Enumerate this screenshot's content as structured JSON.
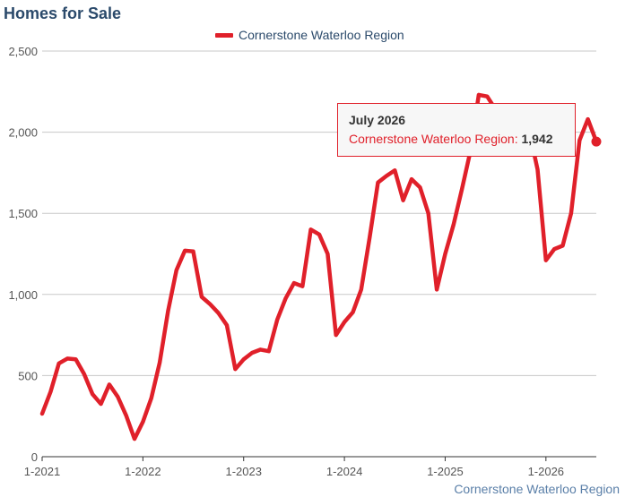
{
  "header": {
    "title": "Homes for Sale"
  },
  "legend": {
    "series_label": "Cornerstone Waterloo Region"
  },
  "tooltip": {
    "date": "July 2026",
    "series_label": "Cornerstone Waterloo Region",
    "separator": ":",
    "value": "1,942"
  },
  "credit": {
    "text": "Cornerstone Waterloo Region"
  },
  "colors": {
    "series": "#e0202a",
    "grid": "#c8c8c8",
    "axis": "#333333",
    "title": "#2b4a6b"
  },
  "chart_data": {
    "type": "line",
    "title": "Homes for Sale",
    "xlabel": "",
    "ylabel": "",
    "ylim": [
      0,
      2500
    ],
    "yticks": [
      0,
      500,
      1000,
      1500,
      2000,
      2500
    ],
    "ytick_labels": [
      "0",
      "500",
      "1,000",
      "1,500",
      "2,000",
      "2,500"
    ],
    "xticks": [
      "1-2021",
      "1-2022",
      "1-2023",
      "1-2024",
      "1-2025",
      "1-2026"
    ],
    "grid": true,
    "legend": "top-center",
    "series": [
      {
        "name": "Cornerstone Waterloo Region",
        "x": [
          "1-2021",
          "2-2021",
          "3-2021",
          "4-2021",
          "5-2021",
          "6-2021",
          "7-2021",
          "8-2021",
          "9-2021",
          "10-2021",
          "11-2021",
          "12-2021",
          "1-2022",
          "2-2022",
          "3-2022",
          "4-2022",
          "5-2022",
          "6-2022",
          "7-2022",
          "8-2022",
          "9-2022",
          "10-2022",
          "11-2022",
          "12-2022",
          "1-2023",
          "2-2023",
          "3-2023",
          "4-2023",
          "5-2023",
          "6-2023",
          "7-2023",
          "8-2023",
          "9-2023",
          "10-2023",
          "11-2023",
          "12-2023",
          "1-2024",
          "2-2024",
          "3-2024",
          "4-2024",
          "5-2024",
          "6-2024",
          "7-2024",
          "8-2024",
          "9-2024",
          "10-2024",
          "11-2024",
          "12-2024",
          "1-2025",
          "2-2025",
          "3-2025",
          "4-2025",
          "5-2025",
          "6-2025",
          "7-2025",
          "8-2025",
          "9-2025",
          "10-2025",
          "11-2025",
          "12-2025",
          "1-2026",
          "2-2026",
          "3-2026",
          "4-2026",
          "5-2026",
          "6-2026",
          "7-2026"
        ],
        "values": [
          265,
          400,
          575,
          605,
          600,
          510,
          385,
          325,
          445,
          370,
          255,
          110,
          215,
          360,
          580,
          900,
          1150,
          1270,
          1265,
          985,
          940,
          885,
          810,
          540,
          600,
          640,
          660,
          650,
          845,
          975,
          1070,
          1050,
          1400,
          1370,
          1250,
          750,
          830,
          890,
          1030,
          1350,
          1690,
          1730,
          1765,
          1580,
          1710,
          1660,
          1500,
          1030,
          1250,
          1430,
          1650,
          1880,
          2230,
          2220,
          2140,
          2080,
          2020,
          2070,
          2010,
          1770,
          1210,
          1280,
          1300,
          1500,
          1950,
          2080,
          1942
        ]
      }
    ],
    "highlight": {
      "x": "7-2026",
      "value": 1942
    }
  }
}
